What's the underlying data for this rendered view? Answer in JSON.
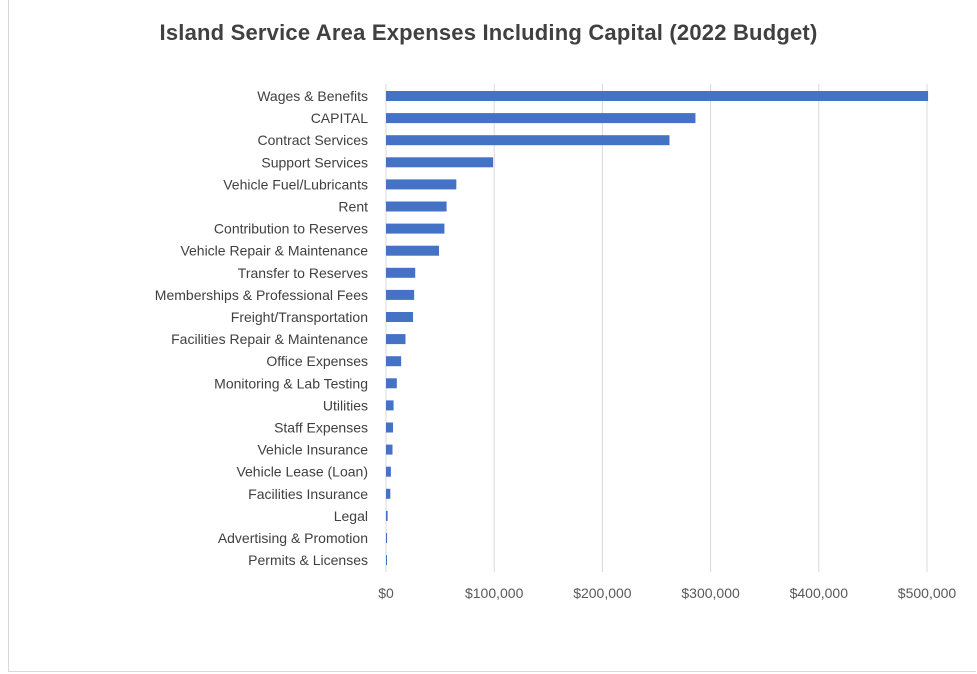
{
  "chart_data": {
    "type": "bar",
    "orientation": "horizontal",
    "title": "Island Service Area Expenses Including Capital (2022 Budget)",
    "xlabel": "",
    "ylabel": "",
    "categories": [
      "Wages & Benefits",
      "CAPITAL",
      "Contract Services",
      "Support Services",
      "Vehicle Fuel/Lubricants",
      "Rent",
      "Contribution to Reserves",
      "Vehicle Repair & Maintenance",
      "Transfer to Reserves",
      "Memberships & Professional Fees",
      "Freight/Transportation",
      "Facilities Repair & Maintenance",
      "Office Expenses",
      "Monitoring & Lab Testing",
      "Utilities",
      "Staff Expenses",
      "Vehicle Insurance",
      "Vehicle Lease (Loan)",
      "Facilities Insurance",
      "Legal",
      "Advertising & Promotion",
      "Permits & Licenses"
    ],
    "values": [
      501000,
      286000,
      262000,
      99000,
      65000,
      56000,
      54000,
      49000,
      27000,
      26000,
      25000,
      18000,
      14000,
      10000,
      7000,
      6500,
      6000,
      4500,
      4000,
      1500,
      1000,
      500
    ],
    "xlim": [
      0,
      500000
    ],
    "xticks": [
      "$0",
      "$100,000",
      "$200,000",
      "$300,000",
      "$400,000",
      "$500,000"
    ],
    "grid": "vertical",
    "legend": "none",
    "bar_color": "#4472c4",
    "grid_color": "#d9d9d9"
  }
}
